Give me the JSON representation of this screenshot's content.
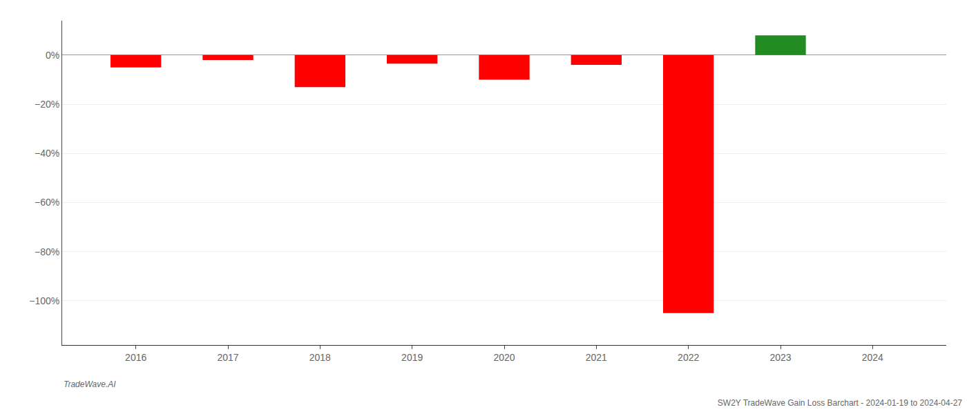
{
  "chart_data": {
    "type": "bar",
    "title": "SW2Y TradeWave Gain Loss Barchart - 2024-01-19 to 2024-04-27",
    "annotations": [
      "TradeWave.AI"
    ],
    "x": [
      2016,
      2017,
      2018,
      2019,
      2020,
      2021,
      2022,
      2023,
      2024
    ],
    "values": [
      -5.0,
      -2.0,
      -13.0,
      -3.5,
      -10.0,
      -4.0,
      -105.0,
      8.0,
      null
    ],
    "colors": [
      "#ff0000",
      "#ff0000",
      "#ff0000",
      "#ff0000",
      "#ff0000",
      "#ff0000",
      "#ff0000",
      "#228B22",
      null
    ],
    "xlim": [
      2015.2,
      2024.8
    ],
    "xticks": [
      2016,
      2017,
      2018,
      2019,
      2020,
      2021,
      2022,
      2023,
      2024
    ],
    "ylim": [
      -118,
      14
    ],
    "yticks": [
      {
        "value": 0,
        "label": "0%"
      },
      {
        "value": -20,
        "label": "−20%"
      },
      {
        "value": -40,
        "label": "−40%"
      },
      {
        "value": -60,
        "label": "−60%"
      },
      {
        "value": -80,
        "label": "−80%"
      },
      {
        "value": -100,
        "label": "−100%"
      }
    ],
    "grid": true
  }
}
